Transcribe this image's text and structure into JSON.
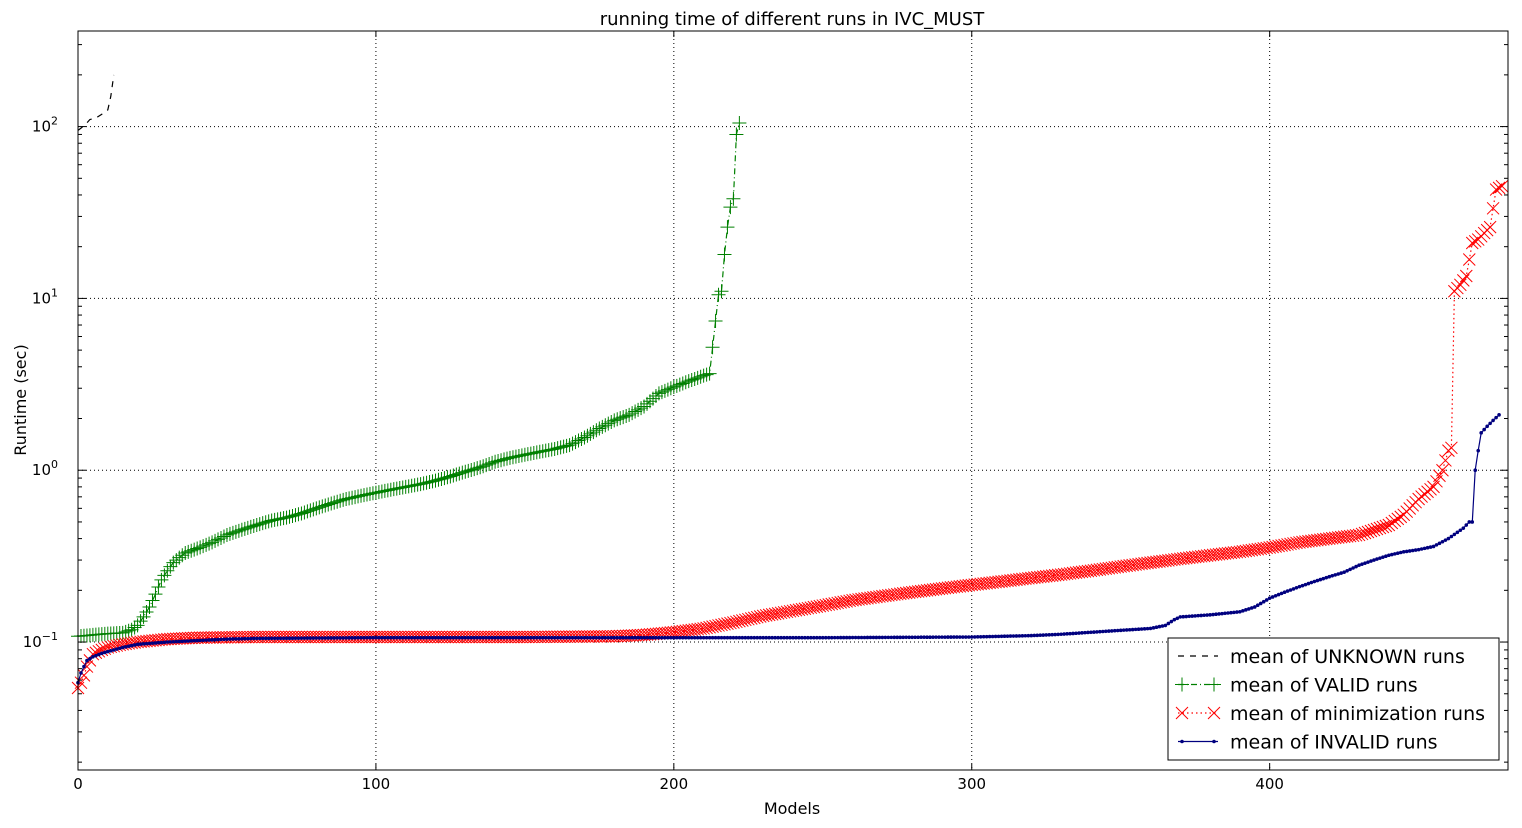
{
  "chart_data": {
    "type": "line",
    "title": "running time of different runs in IVC_MUST",
    "xlabel": "Models",
    "ylabel": "Runtime (sec)",
    "xlim": [
      0,
      480
    ],
    "ylim": [
      0.018,
      360
    ],
    "yscale": "log",
    "grid": true,
    "legend_position": "lower-right",
    "x_ticks": [
      {
        "value": 0,
        "label": "0"
      },
      {
        "value": 100,
        "label": "100"
      },
      {
        "value": 200,
        "label": "200"
      },
      {
        "value": 300,
        "label": "300"
      },
      {
        "value": 400,
        "label": "400"
      }
    ],
    "y_ticks": [
      {
        "value": 0.1,
        "base": "10",
        "exp": "−1"
      },
      {
        "value": 1,
        "base": "10",
        "exp": "0"
      },
      {
        "value": 10,
        "base": "10",
        "exp": "1"
      },
      {
        "value": 100,
        "base": "10",
        "exp": "2"
      }
    ],
    "series": [
      {
        "name": "mean of UNKNOWN runs",
        "color": "#000000",
        "style": "dashed",
        "marker": "none",
        "points": [
          [
            0,
            95
          ],
          [
            1,
            98
          ],
          [
            3,
            105
          ],
          [
            4,
            110
          ],
          [
            6,
            112
          ],
          [
            8,
            118
          ],
          [
            10,
            125
          ],
          [
            11,
            150
          ],
          [
            12,
            200
          ]
        ]
      },
      {
        "name": "mean of VALID runs",
        "color": "#008000",
        "style": "dashdot",
        "marker": "plus",
        "points": [
          [
            0,
            0.108
          ],
          [
            5,
            0.11
          ],
          [
            10,
            0.112
          ],
          [
            15,
            0.113
          ],
          [
            18,
            0.118
          ],
          [
            20,
            0.125
          ],
          [
            22,
            0.14
          ],
          [
            24,
            0.16
          ],
          [
            26,
            0.19
          ],
          [
            28,
            0.23
          ],
          [
            30,
            0.26
          ],
          [
            32,
            0.29
          ],
          [
            34,
            0.31
          ],
          [
            36,
            0.33
          ],
          [
            40,
            0.35
          ],
          [
            45,
            0.38
          ],
          [
            50,
            0.42
          ],
          [
            55,
            0.45
          ],
          [
            60,
            0.48
          ],
          [
            65,
            0.51
          ],
          [
            70,
            0.53
          ],
          [
            75,
            0.56
          ],
          [
            80,
            0.6
          ],
          [
            85,
            0.64
          ],
          [
            90,
            0.68
          ],
          [
            95,
            0.71
          ],
          [
            100,
            0.74
          ],
          [
            105,
            0.77
          ],
          [
            110,
            0.8
          ],
          [
            115,
            0.83
          ],
          [
            120,
            0.87
          ],
          [
            125,
            0.92
          ],
          [
            130,
            0.98
          ],
          [
            135,
            1.04
          ],
          [
            140,
            1.12
          ],
          [
            145,
            1.18
          ],
          [
            150,
            1.23
          ],
          [
            155,
            1.28
          ],
          [
            160,
            1.33
          ],
          [
            165,
            1.4
          ],
          [
            170,
            1.55
          ],
          [
            175,
            1.75
          ],
          [
            180,
            1.95
          ],
          [
            185,
            2.1
          ],
          [
            190,
            2.35
          ],
          [
            195,
            2.8
          ],
          [
            200,
            3.05
          ],
          [
            205,
            3.3
          ],
          [
            210,
            3.55
          ],
          [
            212,
            3.65
          ],
          [
            213,
            5.2
          ],
          [
            215,
            10.5
          ],
          [
            216,
            11
          ],
          [
            217,
            18
          ],
          [
            218,
            26
          ],
          [
            219,
            34
          ],
          [
            220,
            38
          ],
          [
            221,
            90
          ],
          [
            222,
            105
          ]
        ]
      },
      {
        "name": "mean of minimization runs",
        "color": "#ff0000",
        "style": "dotted",
        "marker": "x",
        "points": [
          [
            0,
            0.054
          ],
          [
            1,
            0.058
          ],
          [
            2,
            0.064
          ],
          [
            3,
            0.072
          ],
          [
            5,
            0.085
          ],
          [
            8,
            0.09
          ],
          [
            10,
            0.093
          ],
          [
            15,
            0.097
          ],
          [
            20,
            0.1
          ],
          [
            30,
            0.104
          ],
          [
            40,
            0.106
          ],
          [
            60,
            0.107
          ],
          [
            100,
            0.107
          ],
          [
            150,
            0.107
          ],
          [
            180,
            0.108
          ],
          [
            190,
            0.11
          ],
          [
            200,
            0.114
          ],
          [
            210,
            0.12
          ],
          [
            220,
            0.13
          ],
          [
            230,
            0.142
          ],
          [
            240,
            0.152
          ],
          [
            250,
            0.163
          ],
          [
            260,
            0.175
          ],
          [
            270,
            0.185
          ],
          [
            280,
            0.195
          ],
          [
            290,
            0.205
          ],
          [
            300,
            0.215
          ],
          [
            310,
            0.225
          ],
          [
            320,
            0.236
          ],
          [
            330,
            0.247
          ],
          [
            340,
            0.26
          ],
          [
            350,
            0.275
          ],
          [
            360,
            0.29
          ],
          [
            370,
            0.305
          ],
          [
            380,
            0.32
          ],
          [
            390,
            0.335
          ],
          [
            400,
            0.355
          ],
          [
            410,
            0.38
          ],
          [
            420,
            0.4
          ],
          [
            430,
            0.42
          ],
          [
            440,
            0.48
          ],
          [
            445,
            0.55
          ],
          [
            450,
            0.68
          ],
          [
            455,
            0.8
          ],
          [
            458,
            1.0
          ],
          [
            460,
            1.3
          ],
          [
            461,
            1.35
          ],
          [
            462,
            11
          ],
          [
            464,
            12
          ],
          [
            466,
            13.5
          ],
          [
            468,
            21
          ],
          [
            470,
            22
          ],
          [
            472,
            24
          ],
          [
            474,
            26
          ],
          [
            476,
            43
          ],
          [
            478,
            45
          ]
        ]
      },
      {
        "name": "mean of INVALID runs",
        "color": "#00007f",
        "style": "solid",
        "marker": "dot",
        "points": [
          [
            0,
            0.058
          ],
          [
            1,
            0.066
          ],
          [
            2,
            0.072
          ],
          [
            3,
            0.078
          ],
          [
            5,
            0.082
          ],
          [
            8,
            0.086
          ],
          [
            10,
            0.088
          ],
          [
            15,
            0.093
          ],
          [
            20,
            0.097
          ],
          [
            30,
            0.1
          ],
          [
            40,
            0.102
          ],
          [
            50,
            0.104
          ],
          [
            60,
            0.105
          ],
          [
            100,
            0.106
          ],
          [
            150,
            0.106
          ],
          [
            200,
            0.106
          ],
          [
            250,
            0.106
          ],
          [
            300,
            0.107
          ],
          [
            310,
            0.108
          ],
          [
            320,
            0.109
          ],
          [
            330,
            0.111
          ],
          [
            340,
            0.114
          ],
          [
            350,
            0.117
          ],
          [
            360,
            0.12
          ],
          [
            365,
            0.125
          ],
          [
            368,
            0.135
          ],
          [
            370,
            0.14
          ],
          [
            380,
            0.144
          ],
          [
            390,
            0.15
          ],
          [
            395,
            0.16
          ],
          [
            400,
            0.18
          ],
          [
            405,
            0.195
          ],
          [
            410,
            0.21
          ],
          [
            415,
            0.225
          ],
          [
            420,
            0.24
          ],
          [
            425,
            0.255
          ],
          [
            430,
            0.28
          ],
          [
            435,
            0.3
          ],
          [
            440,
            0.32
          ],
          [
            445,
            0.335
          ],
          [
            450,
            0.345
          ],
          [
            455,
            0.36
          ],
          [
            460,
            0.4
          ],
          [
            465,
            0.46
          ],
          [
            467,
            0.5
          ],
          [
            468,
            0.5
          ],
          [
            469,
            1.0
          ],
          [
            470,
            1.3
          ],
          [
            471,
            1.65
          ],
          [
            473,
            1.8
          ],
          [
            475,
            1.95
          ],
          [
            477,
            2.1
          ]
        ]
      }
    ]
  }
}
